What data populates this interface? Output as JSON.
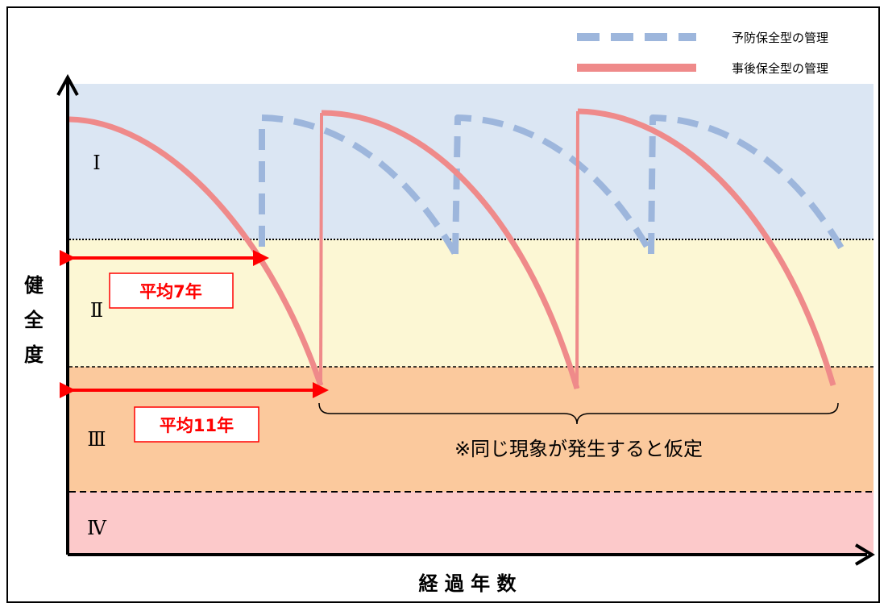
{
  "legend": {
    "preventive": {
      "label": "予防保全型の管理",
      "color": "#9db6dc"
    },
    "reactive": {
      "label": "事後保全型の管理",
      "color": "#ef8a8a"
    }
  },
  "y_axis": {
    "label_chars": [
      "健",
      "全",
      "度"
    ]
  },
  "x_axis": {
    "label": "経 過 年 数"
  },
  "zones": [
    {
      "label": "Ⅰ",
      "color": "#dbe6f3"
    },
    {
      "label": "Ⅱ",
      "color": "#fcf7d4"
    },
    {
      "label": "Ⅲ",
      "color": "#fbc99d"
    },
    {
      "label": "Ⅳ",
      "color": "#fcc9ca"
    }
  ],
  "annotations": {
    "avg_short": "平均7年",
    "avg_long": "平均11年",
    "note": "※同じ現象が発生すると仮定"
  },
  "colors": {
    "arrow": "#ff0000",
    "axis": "#000000"
  }
}
